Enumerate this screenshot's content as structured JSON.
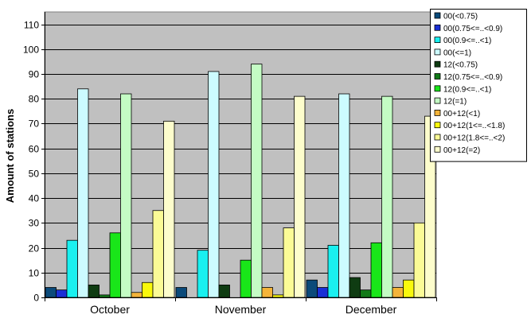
{
  "chart_data": {
    "type": "bar",
    "ylabel": "Amount of stations",
    "xlabel": "",
    "ylim": [
      0,
      115
    ],
    "yticks": [
      0,
      10,
      20,
      30,
      40,
      50,
      60,
      70,
      80,
      90,
      100,
      110
    ],
    "grid": true,
    "legend_position": "top-right",
    "categories": [
      "October",
      "November",
      "December"
    ],
    "series": [
      {
        "name": "00(<0.75)",
        "color": "#0b4a7a",
        "values": [
          4,
          4,
          7
        ]
      },
      {
        "name": "00(0.75<=..<0.9)",
        "color": "#1a2fd6",
        "values": [
          3,
          0,
          4
        ]
      },
      {
        "name": "00(0.9<=..<1)",
        "color": "#19f0f0",
        "values": [
          23,
          19,
          21
        ]
      },
      {
        "name": "00(<=1)",
        "color": "#ccfbff",
        "values": [
          84,
          91,
          82
        ]
      },
      {
        "name": "12(<0.75)",
        "color": "#0f3c12",
        "values": [
          5,
          5,
          8
        ]
      },
      {
        "name": "12(0.75<=..<0.9)",
        "color": "#127a18",
        "values": [
          1,
          0,
          3
        ]
      },
      {
        "name": "12(0.9<=..<1)",
        "color": "#19e619",
        "values": [
          26,
          15,
          22
        ]
      },
      {
        "name": "12(=1)",
        "color": "#c4fcc4",
        "values": [
          82,
          94,
          81
        ]
      },
      {
        "name": "00+12(<1)",
        "color": "#f4b43a",
        "values": [
          2,
          4,
          4
        ]
      },
      {
        "name": "00+12(1<=..<1.8)",
        "color": "#f9f90c",
        "values": [
          6,
          1,
          7
        ]
      },
      {
        "name": "00+12(1.8<=..<2)",
        "color": "#fbfb96",
        "values": [
          35,
          28,
          30
        ]
      },
      {
        "name": "00+12(=2)",
        "color": "#fdfdcc",
        "values": [
          71,
          81,
          73
        ]
      }
    ]
  }
}
